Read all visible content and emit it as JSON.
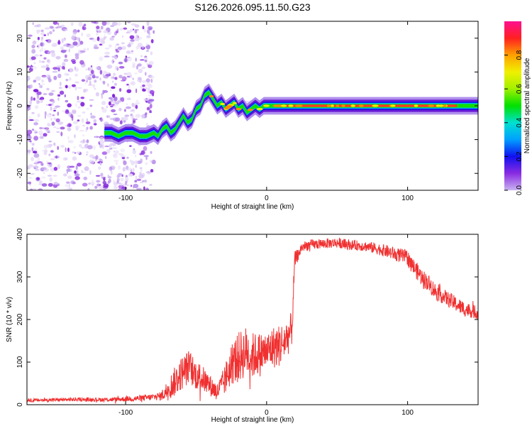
{
  "title": "S126.2026.095.11.50.G23",
  "chart_data": [
    {
      "type": "heatmap",
      "description_of_panel": "spectrogram",
      "xlabel": "Height of straight line (km)",
      "ylabel": "Frequency (Hz)",
      "xlim": [
        -170,
        150
      ],
      "ylim": [
        -25,
        25
      ],
      "xticks": [
        -100,
        0,
        100
      ],
      "yticks": [
        -20,
        -10,
        0,
        10,
        20
      ],
      "ridge": {
        "x": [
          -115,
          -110,
          -105,
          -100,
          -95,
          -90,
          -85,
          -80,
          -77,
          -74,
          -71,
          -68,
          -65,
          -62,
          -59,
          -56,
          -53,
          -50,
          -47,
          -44,
          -41,
          -38,
          -35,
          -32,
          -29,
          -26,
          -23,
          -20,
          -17,
          -14,
          -11,
          -8,
          -5,
          -2,
          0,
          5,
          10,
          20,
          40,
          60,
          80,
          100,
          120,
          150
        ],
        "y": [
          -8,
          -8,
          -9,
          -8,
          -8,
          -9,
          -9,
          -8,
          -9,
          -7,
          -6,
          -8,
          -7,
          -5,
          -3,
          -5,
          -4,
          -1,
          0,
          3,
          4,
          2,
          0,
          1,
          -1,
          0,
          1,
          -1,
          0,
          -2,
          -1,
          0,
          -1,
          0,
          0,
          0,
          0,
          0,
          0,
          0,
          0,
          0,
          0,
          0
        ]
      },
      "colorbar": {
        "label": "Normalized spectral amplitude",
        "ticks": [
          0.0,
          0.2,
          0.4,
          0.6,
          0.8
        ],
        "range": [
          0,
          1
        ]
      }
    },
    {
      "type": "line",
      "description_of_panel": "snr",
      "xlabel": "Height of straight line (km)",
      "ylabel": "SNR (10 * v/v)",
      "xlim": [
        -170,
        150
      ],
      "ylim": [
        0,
        400
      ],
      "xticks": [
        -100,
        0,
        100
      ],
      "yticks": [
        0,
        100,
        200,
        300,
        400
      ],
      "color": "#f03030",
      "x": [
        -170,
        -140,
        -110,
        -90,
        -80,
        -75,
        -70,
        -65,
        -60,
        -55,
        -50,
        -45,
        -40,
        -35,
        -30,
        -25,
        -20,
        -15,
        -10,
        -5,
        0,
        5,
        10,
        15,
        18,
        20,
        22,
        25,
        30,
        40,
        50,
        60,
        70,
        80,
        90,
        100,
        105,
        110,
        115,
        120,
        125,
        130,
        135,
        140,
        145,
        150
      ],
      "y": [
        10,
        12,
        12,
        15,
        18,
        20,
        35,
        55,
        75,
        90,
        70,
        60,
        45,
        30,
        55,
        95,
        110,
        125,
        115,
        120,
        125,
        135,
        140,
        160,
        180,
        340,
        350,
        370,
        375,
        378,
        380,
        375,
        372,
        365,
        355,
        345,
        320,
        300,
        285,
        265,
        255,
        245,
        235,
        225,
        220,
        215
      ],
      "noise_amplitude": [
        4,
        4,
        5,
        7,
        8,
        10,
        25,
        35,
        40,
        40,
        35,
        30,
        25,
        20,
        35,
        50,
        60,
        60,
        55,
        50,
        45,
        50,
        50,
        45,
        40,
        20,
        15,
        12,
        12,
        12,
        12,
        12,
        12,
        14,
        16,
        18,
        20,
        20,
        20,
        20,
        18,
        18,
        18,
        18,
        16,
        16
      ]
    }
  ]
}
